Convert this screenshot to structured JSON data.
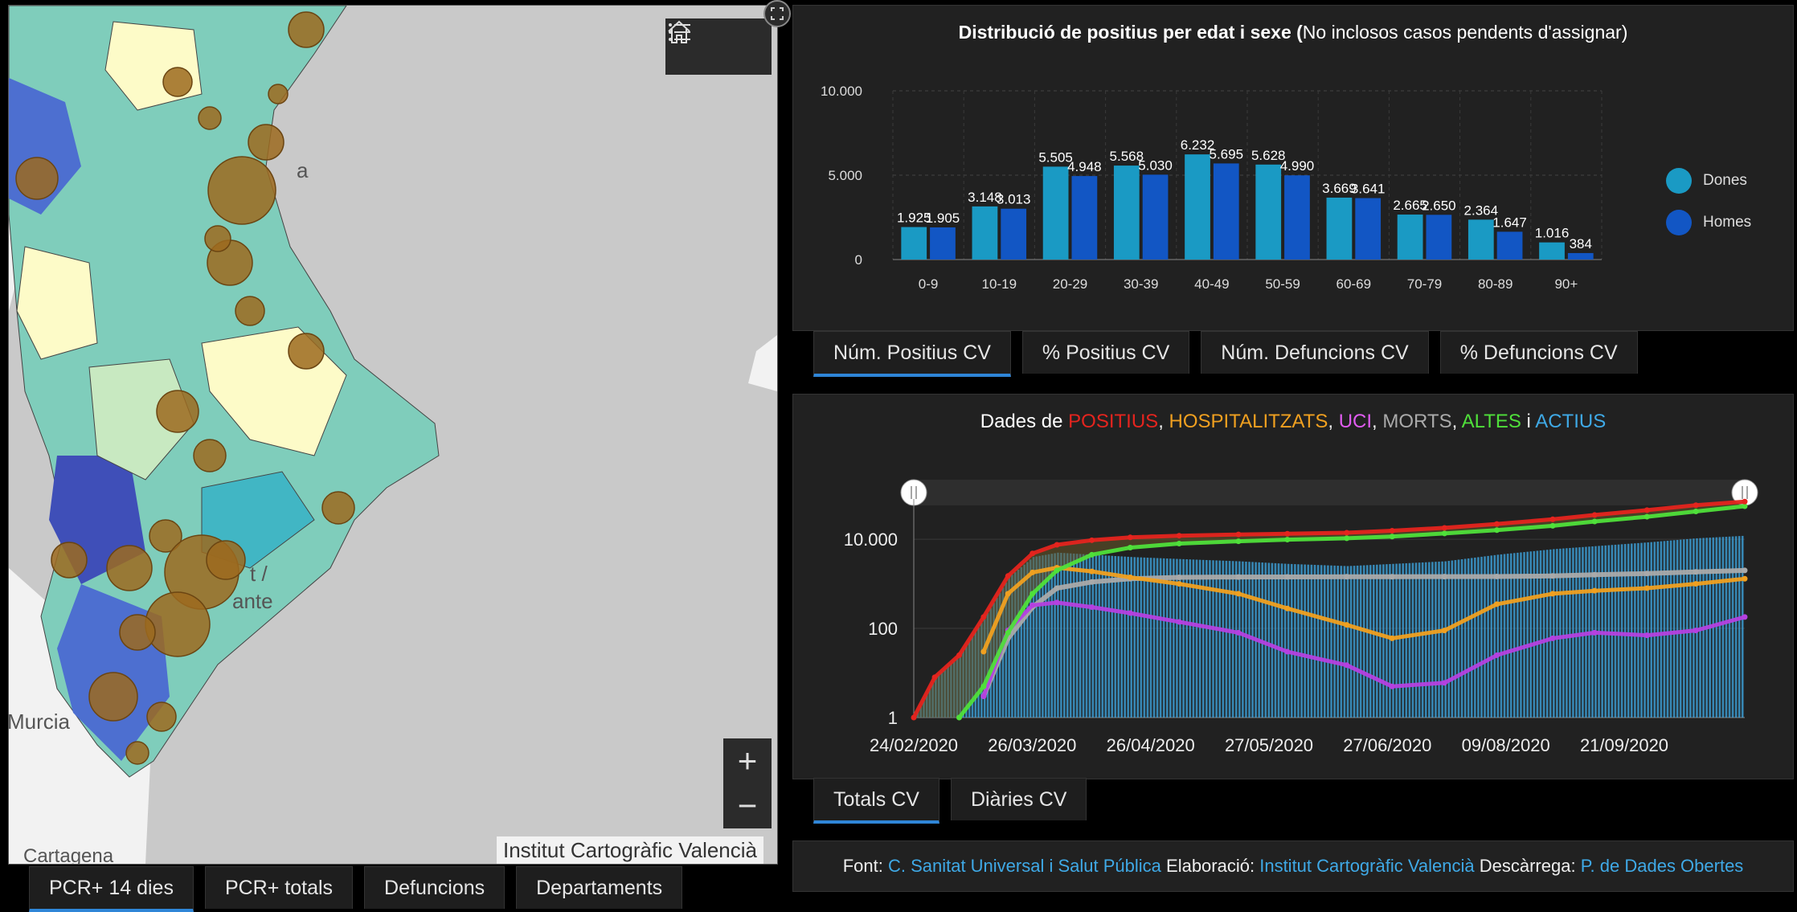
{
  "map": {
    "home_icon": "home-icon",
    "layers_icon": "list-icon",
    "expand_icon": "expand-icon",
    "zoom_in": "+",
    "zoom_out": "−",
    "attribution": "Institut Cartogràfic Valencià",
    "place_labels": {
      "murcia": "Murcia",
      "cartagena": "Cartagena",
      "alacant_1": "t /",
      "alacant_2": "ante",
      "valencia": "a"
    },
    "colors": {
      "sea": "#c9c9c9",
      "land": "#f0f0f0",
      "choropleth": [
        "#fdfbc8",
        "#c8e9c1",
        "#7fcdbb",
        "#41b6c4",
        "#4d6fd0",
        "#3f4fb8"
      ],
      "circle": "#9c6a1f"
    }
  },
  "map_tabs": [
    {
      "label": "PCR+ 14 dies",
      "active": true
    },
    {
      "label": "PCR+ totals",
      "active": false
    },
    {
      "label": "Defuncions",
      "active": false
    },
    {
      "label": "Departaments",
      "active": false
    }
  ],
  "age_chart": {
    "title_bold": "Distribució de positius per edat i sexe (",
    "title_rest": "No inclosos casos pendents d'assignar)",
    "tabs": [
      {
        "label": "Núm. Positius CV",
        "active": true
      },
      {
        "label": "% Positius CV",
        "active": false
      },
      {
        "label": "Núm. Defuncions CV",
        "active": false
      },
      {
        "label": "% Defuncions CV",
        "active": false
      }
    ]
  },
  "timeline": {
    "title_prefix": "Dades de ",
    "title_parts": [
      {
        "text": "POSITIUS",
        "color": "#e5241e"
      },
      {
        "text": ", ",
        "color": "#eeeeee"
      },
      {
        "text": "HOSPITALITZATS",
        "color": "#f0a020"
      },
      {
        "text": ", ",
        "color": "#eeeeee"
      },
      {
        "text": "UCI",
        "color": "#e05cf0"
      },
      {
        "text": ", ",
        "color": "#eeeeee"
      },
      {
        "text": "MORTS",
        "color": "#aaaaaa"
      },
      {
        "text": ", ",
        "color": "#eeeeee"
      },
      {
        "text": "ALTES",
        "color": "#4fe03a"
      },
      {
        "text": " i ",
        "color": "#eeeeee"
      },
      {
        "text": "ACTIUS",
        "color": "#3fa9e6"
      }
    ],
    "tabs": [
      {
        "label": "Totals CV",
        "active": true
      },
      {
        "label": "Diàries CV",
        "active": false
      }
    ]
  },
  "source": {
    "font_label": "Font: ",
    "font_link": "C. Sanitat Universal i Salut Pública",
    "elab_label": " Elaboració: ",
    "elab_link": "Institut Cartogràfic Valencià",
    "desc_label": " Descàrrega: ",
    "desc_link": "P. de Dades Obertes"
  },
  "chart_data": [
    {
      "type": "bar",
      "title": "Distribució de positius per edat i sexe (No inclosos casos pendents d'assignar)",
      "categories": [
        "0-9",
        "10-19",
        "20-29",
        "30-39",
        "40-49",
        "50-59",
        "60-69",
        "70-79",
        "80-89",
        "90+"
      ],
      "series": [
        {
          "name": "Dones",
          "color": "#1a9ac4",
          "values": [
            1925,
            3148,
            5505,
            5568,
            6232,
            5628,
            3669,
            2665,
            2364,
            1016
          ],
          "labels": [
            "1.925",
            "3.148",
            "5.505",
            "5.568",
            "6.232",
            "5.628",
            "3.669",
            "2.665",
            "2.364",
            "1.016"
          ]
        },
        {
          "name": "Homes",
          "color": "#1256c4",
          "values": [
            1905,
            3013,
            4948,
            5030,
            5695,
            4990,
            3641,
            2650,
            1647,
            384
          ],
          "labels": [
            "1.905",
            "3.013",
            "4.948",
            "5.030",
            "5.695",
            "4.990",
            "3.641",
            "2.650",
            "1.647",
            "384"
          ]
        }
      ],
      "ylim": [
        0,
        10000
      ],
      "yticks": [
        0,
        5000,
        10000
      ],
      "ytick_labels": [
        "0",
        "5.000",
        "10.000"
      ],
      "grid": true,
      "legend": "right"
    },
    {
      "type": "line",
      "title": "Dades de POSITIUS, HOSPITALITZATS, UCI, MORTS, ALTES i ACTIUS",
      "yscale": "log",
      "ylim": [
        1,
        80000
      ],
      "yticks": [
        1,
        100,
        10000
      ],
      "ytick_labels": [
        "1",
        "100",
        "10.000"
      ],
      "x_tick_labels": [
        "24/02/2020",
        "26/03/2020",
        "26/04/2020",
        "27/05/2020",
        "27/06/2020",
        "09/08/2020",
        "21/09/2020"
      ],
      "x": [
        "2020-02-24",
        "2020-03-01",
        "2020-03-08",
        "2020-03-15",
        "2020-03-22",
        "2020-03-29",
        "2020-04-05",
        "2020-04-15",
        "2020-04-26",
        "2020-05-10",
        "2020-05-27",
        "2020-06-10",
        "2020-06-27",
        "2020-07-10",
        "2020-07-25",
        "2020-08-09",
        "2020-08-25",
        "2020-09-06",
        "2020-09-21",
        "2020-10-05",
        "2020-10-19"
      ],
      "series": [
        {
          "name": "POSITIUS",
          "color": "#e5241e",
          "values": [
            1,
            8,
            25,
            180,
            1500,
            4800,
            7500,
            9500,
            11000,
            12000,
            12800,
            13300,
            14000,
            15500,
            18000,
            22000,
            28000,
            35000,
            45000,
            58000,
            70000
          ]
        },
        {
          "name": "HOSPITALITZATS",
          "color": "#f0a020",
          "values": [
            null,
            null,
            null,
            30,
            600,
            1800,
            2300,
            1900,
            1400,
            1000,
            600,
            280,
            120,
            60,
            90,
            350,
            600,
            700,
            800,
            1000,
            1300
          ]
        },
        {
          "name": "UCI",
          "color": "#b540e0",
          "values": [
            null,
            null,
            null,
            3,
            90,
            330,
            380,
            300,
            220,
            140,
            80,
            30,
            15,
            5,
            6,
            25,
            60,
            80,
            70,
            90,
            180
          ]
        },
        {
          "name": "MORTS",
          "color": "#aaaaaa",
          "values": [
            null,
            null,
            null,
            3,
            60,
            300,
            800,
            1100,
            1300,
            1400,
            1420,
            1430,
            1440,
            1440,
            1450,
            1460,
            1500,
            1600,
            1700,
            1850,
            2000
          ]
        },
        {
          "name": "ALTES",
          "color": "#4fe03a",
          "values": [
            null,
            null,
            1,
            5,
            80,
            600,
            2000,
            4500,
            6500,
            8000,
            9000,
            9800,
            10500,
            11500,
            13500,
            16000,
            20000,
            25000,
            32000,
            42000,
            55000
          ]
        },
        {
          "name": "ACTIUS",
          "color": "#3fa9e6",
          "values": [
            1,
            8,
            25,
            170,
            1400,
            4000,
            5000,
            4500,
            4000,
            3600,
            3200,
            2800,
            2500,
            2800,
            3200,
            4500,
            6000,
            7000,
            8500,
            10500,
            12000
          ]
        }
      ]
    }
  ]
}
